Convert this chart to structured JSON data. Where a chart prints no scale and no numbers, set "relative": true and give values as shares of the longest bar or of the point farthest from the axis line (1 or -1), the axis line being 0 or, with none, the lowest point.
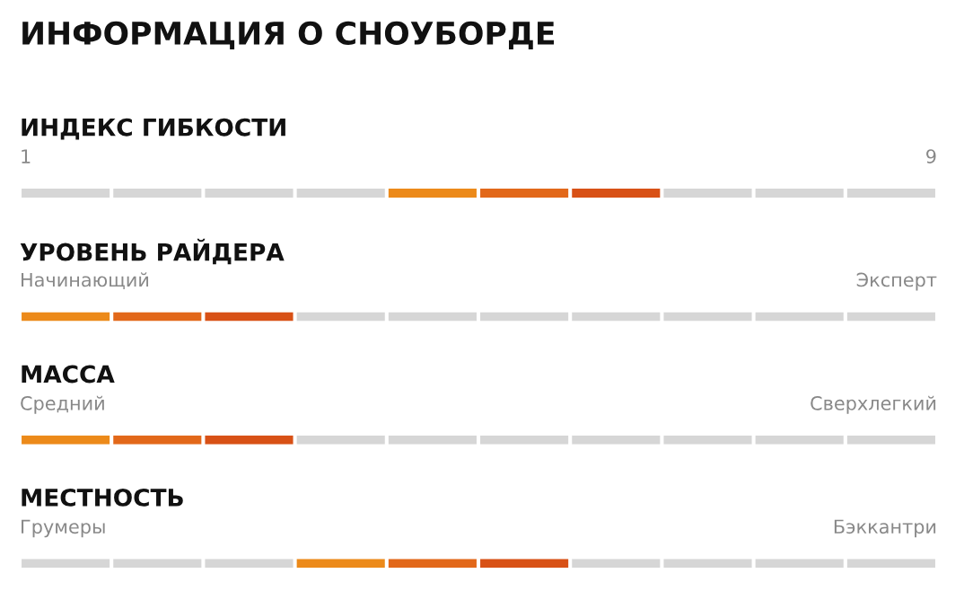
{
  "chart_data": [
    {
      "type": "other",
      "title": "ИНФОРМАЦИЯ О СНОУБОРДЕ"
    },
    {
      "type": "bar",
      "relative": true,
      "title": "ИНДЕКС ГИБКОСТИ",
      "categories": [
        null,
        null,
        null,
        null,
        null,
        null,
        null,
        null,
        null,
        null
      ],
      "values": [
        1,
        1,
        1,
        1,
        1,
        1,
        1,
        1,
        1,
        1
      ],
      "colors": [
        "#d6d6d6",
        "#d6d6d6",
        "#d6d6d6",
        "#d6d6d6",
        "#ec8a1a",
        "#e2681a",
        "#d85116",
        "#d6d6d6",
        "#d6d6d6",
        "#d6d6d6"
      ],
      "annotations": [
        "1",
        "9"
      ]
    },
    {
      "type": "bar",
      "relative": true,
      "title": "УРОВЕНЬ РАЙДЕРА",
      "categories": [
        null,
        null,
        null,
        null,
        null,
        null,
        null,
        null,
        null,
        null
      ],
      "values": [
        1,
        1,
        1,
        1,
        1,
        1,
        1,
        1,
        1,
        1
      ],
      "colors": [
        "#ec8a1a",
        "#e2681a",
        "#d85116",
        "#d6d6d6",
        "#d6d6d6",
        "#d6d6d6",
        "#d6d6d6",
        "#d6d6d6",
        "#d6d6d6",
        "#d6d6d6"
      ],
      "annotations": [
        "Начинающий",
        "Эксперт"
      ]
    },
    {
      "type": "bar",
      "relative": true,
      "title": "МАССА",
      "categories": [
        null,
        null,
        null,
        null,
        null,
        null,
        null,
        null,
        null,
        null
      ],
      "values": [
        1,
        1,
        1,
        1,
        1,
        1,
        1,
        1,
        1,
        1
      ],
      "colors": [
        "#ec8a1a",
        "#e2681a",
        "#d85116",
        "#d6d6d6",
        "#d6d6d6",
        "#d6d6d6",
        "#d6d6d6",
        "#d6d6d6",
        "#d6d6d6",
        "#d6d6d6"
      ],
      "annotations": [
        "Средний",
        "Сверхлегкий"
      ]
    },
    {
      "type": "bar",
      "relative": true,
      "title": "МЕСТНОСТЬ",
      "categories": [
        null,
        null,
        null,
        null,
        null,
        null,
        null,
        null,
        null,
        null
      ],
      "values": [
        1,
        1,
        1,
        1,
        1,
        1,
        1,
        1,
        1,
        1
      ],
      "colors": [
        "#d6d6d6",
        "#d6d6d6",
        "#d6d6d6",
        "#ec8a1a",
        "#e2681a",
        "#d85116",
        "#d6d6d6",
        "#d6d6d6",
        "#d6d6d6",
        "#d6d6d6"
      ],
      "annotations": [
        "Грумеры",
        "Бэккантри"
      ]
    }
  ]
}
